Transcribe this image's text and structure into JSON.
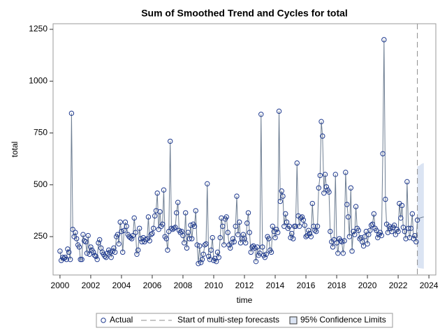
{
  "chart_data": {
    "type": "line",
    "title": "Sum of Smoothed Trend and Cycles for total",
    "x_label": "time",
    "y_label": "total",
    "xlim": [
      1999.55,
      2024.45
    ],
    "xticks": [
      2000,
      2002,
      2004,
      2006,
      2008,
      2010,
      2012,
      2014,
      2016,
      2018,
      2020,
      2022,
      2024
    ],
    "ylim": [
      65,
      1277
    ],
    "yticks": [
      250,
      500,
      750,
      1000,
      1250
    ],
    "x": [
      2000,
      2000.08,
      2000.17,
      2000.25,
      2000.33,
      2000.42,
      2000.5,
      2000.58,
      2000.67,
      2000.75,
      2000.83,
      2000.92,
      2001,
      2001.08,
      2001.17,
      2001.25,
      2001.33,
      2001.42,
      2001.5,
      2001.58,
      2001.67,
      2001.75,
      2001.83,
      2001.92,
      2002,
      2002.08,
      2002.17,
      2002.25,
      2002.33,
      2002.42,
      2002.5,
      2002.58,
      2002.67,
      2002.75,
      2002.83,
      2002.92,
      2003,
      2003.08,
      2003.17,
      2003.25,
      2003.33,
      2003.42,
      2003.5,
      2003.58,
      2003.67,
      2003.75,
      2003.83,
      2003.92,
      2004,
      2004.08,
      2004.17,
      2004.25,
      2004.33,
      2004.42,
      2004.5,
      2004.58,
      2004.67,
      2004.75,
      2004.83,
      2004.92,
      2005,
      2005.08,
      2005.17,
      2005.25,
      2005.33,
      2005.42,
      2005.5,
      2005.58,
      2005.67,
      2005.75,
      2005.83,
      2005.92,
      2006,
      2006.08,
      2006.17,
      2006.25,
      2006.33,
      2006.42,
      2006.5,
      2006.58,
      2006.67,
      2006.75,
      2006.83,
      2006.92,
      2007,
      2007.08,
      2007.17,
      2007.25,
      2007.33,
      2007.42,
      2007.5,
      2007.58,
      2007.67,
      2007.75,
      2007.83,
      2007.92,
      2008,
      2008.08,
      2008.17,
      2008.25,
      2008.33,
      2008.42,
      2008.5,
      2008.58,
      2008.67,
      2008.75,
      2008.83,
      2008.92,
      2009,
      2009.08,
      2009.17,
      2009.25,
      2009.33,
      2009.42,
      2009.5,
      2009.58,
      2009.67,
      2009.75,
      2009.83,
      2009.92,
      2010,
      2010.08,
      2010.17,
      2010.25,
      2010.33,
      2010.42,
      2010.5,
      2010.58,
      2010.67,
      2010.75,
      2010.83,
      2010.92,
      2011,
      2011.08,
      2011.17,
      2011.25,
      2011.33,
      2011.42,
      2011.5,
      2011.58,
      2011.67,
      2011.75,
      2011.83,
      2011.92,
      2012,
      2012.08,
      2012.17,
      2012.25,
      2012.33,
      2012.42,
      2012.5,
      2012.58,
      2012.67,
      2012.75,
      2012.83,
      2012.92,
      2013,
      2013.08,
      2013.17,
      2013.25,
      2013.33,
      2013.42,
      2013.5,
      2013.58,
      2013.67,
      2013.75,
      2013.83,
      2013.92,
      2014,
      2014.08,
      2014.17,
      2014.25,
      2014.33,
      2014.42,
      2014.5,
      2014.58,
      2014.67,
      2014.75,
      2014.83,
      2014.92,
      2015,
      2015.08,
      2015.17,
      2015.25,
      2015.33,
      2015.42,
      2015.5,
      2015.58,
      2015.67,
      2015.75,
      2015.83,
      2015.92,
      2016,
      2016.08,
      2016.17,
      2016.25,
      2016.33,
      2016.42,
      2016.5,
      2016.58,
      2016.67,
      2016.75,
      2016.83,
      2016.92,
      2017,
      2017.08,
      2017.17,
      2017.25,
      2017.33,
      2017.42,
      2017.5,
      2017.58,
      2017.67,
      2017.75,
      2017.83,
      2017.92,
      2018,
      2018.08,
      2018.17,
      2018.25,
      2018.33,
      2018.42,
      2018.5,
      2018.58,
      2018.67,
      2018.75,
      2018.83,
      2018.92,
      2019,
      2019.08,
      2019.17,
      2019.25,
      2019.33,
      2019.42,
      2019.5,
      2019.58,
      2019.67,
      2019.75,
      2019.83,
      2019.92,
      2020,
      2020.08,
      2020.17,
      2020.25,
      2020.33,
      2020.42,
      2020.5,
      2020.58,
      2020.67,
      2020.75,
      2020.83,
      2020.92,
      2021,
      2021.08,
      2021.17,
      2021.25,
      2021.33,
      2021.42,
      2021.5,
      2021.58,
      2021.67,
      2021.75,
      2021.83,
      2021.92,
      2022,
      2022.08,
      2022.17,
      2022.25,
      2022.33,
      2022.42,
      2022.5,
      2022.58,
      2022.67,
      2022.75,
      2022.83,
      2022.92,
      2023,
      2023.08,
      2023.17,
      2023.25
    ],
    "series": [
      {
        "name": "Actual",
        "color": "#6f7f93",
        "marker_color": "#1f3a8f",
        "values": [
          180,
          135,
          150,
          145,
          150,
          140,
          190,
          175,
          140,
          845,
          285,
          250,
          270,
          240,
          210,
          200,
          140,
          140,
          260,
          230,
          225,
          170,
          255,
          165,
          200,
          185,
          175,
          160,
          155,
          140,
          220,
          235,
          195,
          175,
          165,
          155,
          150,
          170,
          185,
          175,
          150,
          180,
          195,
          175,
          250,
          260,
          215,
          320,
          275,
          175,
          280,
          320,
          300,
          260,
          250,
          245,
          240,
          255,
          340,
          270,
          165,
          185,
          290,
          240,
          225,
          245,
          225,
          235,
          240,
          345,
          230,
          260,
          265,
          290,
          350,
          375,
          460,
          285,
          370,
          300,
          310,
          475,
          250,
          240,
          185,
          275,
          710,
          290,
          285,
          290,
          295,
          365,
          415,
          280,
          270,
          275,
          255,
          220,
          365,
          195,
          270,
          240,
          305,
          240,
          310,
          300,
          375,
          210,
          120,
          205,
          125,
          140,
          165,
          210,
          215,
          505,
          155,
          140,
          185,
          245,
          135,
          145,
          130,
          175,
          150,
          245,
          340,
          300,
          210,
          335,
          345,
          270,
          210,
          195,
          220,
          240,
          225,
          300,
          445,
          260,
          320,
          220,
          240,
          260,
          240,
          220,
          315,
          365,
          270,
          175,
          200,
          205,
          195,
          130,
          200,
          160,
          170,
          840,
          200,
          160,
          150,
          165,
          250,
          240,
          185,
          175,
          300,
          275,
          245,
          285,
          270,
          855,
          420,
          470,
          445,
          300,
          360,
          320,
          290,
          300,
          245,
          265,
          240,
          300,
          300,
          605,
          350,
          300,
          340,
          345,
          330,
          305,
          250,
          255,
          280,
          265,
          250,
          410,
          300,
          280,
          275,
          300,
          485,
          545,
          805,
          735,
          460,
          550,
          490,
          475,
          465,
          275,
          225,
          200,
          235,
          550,
          220,
          170,
          240,
          230,
          225,
          170,
          230,
          560,
          405,
          345,
          250,
          485,
          180,
          275,
          260,
          395,
          290,
          280,
          240,
          245,
          225,
          205,
          250,
          275,
          215,
          260,
          280,
          305,
          310,
          360,
          290,
          280,
          245,
          260,
          270,
          255,
          650,
          1200,
          430,
          310,
          270,
          300,
          290,
          275,
          295,
          305,
          260,
          285,
          275,
          410,
          340,
          400,
          295,
          275,
          240,
          515,
          290,
          245,
          290,
          360,
          240,
          255,
          225,
          330
        ]
      }
    ],
    "forecast": {
      "x": [
        2023.25,
        2023.33,
        2023.42,
        2023.5,
        2023.58,
        2023.67
      ],
      "values": [
        330,
        335,
        340,
        342,
        344,
        345
      ],
      "upper": [
        590,
        590,
        595,
        600,
        603,
        605
      ],
      "lower": [
        100,
        100,
        98,
        97,
        96,
        95
      ],
      "color": "#6f7f93",
      "band_color": "#dbe4f3",
      "band_label": "95% Confidence Limits"
    },
    "reference_line": {
      "x": 2023.25,
      "label": "Start of multi-step forecasts",
      "color": "#8c8c8c"
    }
  }
}
